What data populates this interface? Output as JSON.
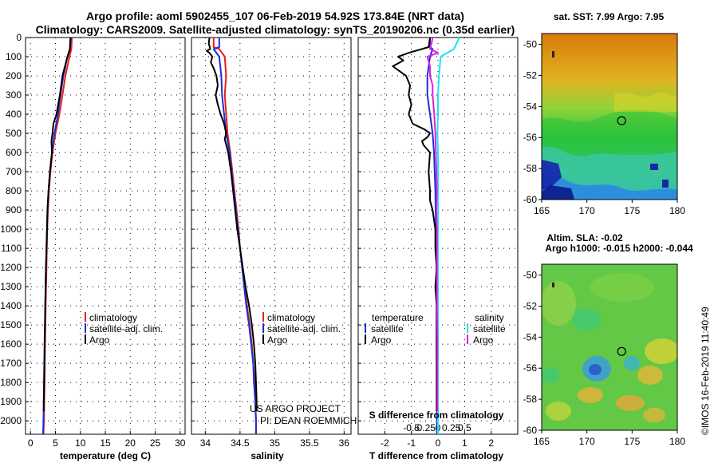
{
  "header": {
    "line1": "Argo profile: aoml 5902455_107 06-Feb-2019 54.92S 173.84E (NRT data)",
    "line2": "Climatology: CARS2009. Satellite-adjusted climatology: synTS_20190206.nc (0.35d earlier)"
  },
  "colors": {
    "climatology": "#e8201a",
    "satellite": "#1a2fd6",
    "argo": "#000000",
    "sal_sat": "#19e6f0",
    "sal_argo": "#e61ae6"
  },
  "chart_data": [
    {
      "type": "line",
      "panel": "temperature",
      "xlabel": "temperature (deg C)",
      "xlim": [
        -1,
        31
      ],
      "xticks": [
        "0",
        "5",
        "10",
        "15",
        "20",
        "25",
        "30"
      ],
      "ylim": [
        0,
        2070
      ],
      "yticks": [
        "0",
        "100",
        "200",
        "300",
        "400",
        "500",
        "600",
        "700",
        "800",
        "900",
        "1000",
        "1100",
        "1200",
        "1300",
        "1400",
        "1500",
        "1600",
        "1700",
        "1800",
        "1900",
        "2000"
      ],
      "legend": [
        "climatology",
        "satellite-adj. clim.",
        "Argo"
      ],
      "series": [
        {
          "name": "climatology",
          "depth": [
            0,
            60,
            100,
            200,
            300,
            400,
            500,
            600,
            700,
            800,
            900,
            1000,
            1200,
            1400,
            1600,
            1800,
            2000,
            2070
          ],
          "values": [
            8.3,
            8.2,
            7.8,
            7.0,
            6.4,
            5.8,
            5.0,
            4.4,
            4.0,
            3.7,
            3.5,
            3.35,
            3.2,
            3.05,
            2.9,
            2.8,
            2.7,
            2.6
          ]
        },
        {
          "name": "satellite-adj. clim.",
          "depth": [
            0,
            60,
            100,
            200,
            300,
            400,
            500,
            600,
            700,
            800,
            900,
            1000,
            1200,
            1400,
            1600,
            1800,
            2000,
            2070
          ],
          "values": [
            8.1,
            7.9,
            7.4,
            6.6,
            6.0,
            5.5,
            4.8,
            4.3,
            3.9,
            3.6,
            3.4,
            3.3,
            3.1,
            2.95,
            2.8,
            2.7,
            2.6,
            2.5
          ]
        },
        {
          "name": "Argo",
          "depth": [
            0,
            60,
            110,
            200,
            300,
            400,
            450,
            500,
            540,
            600,
            700,
            800,
            900,
            1000,
            1200,
            1400,
            1600,
            1800,
            1950
          ],
          "values": [
            8.0,
            7.9,
            7.3,
            6.4,
            5.9,
            5.2,
            4.6,
            4.4,
            4.2,
            4.3,
            3.9,
            3.6,
            3.4,
            3.3,
            3.1,
            2.95,
            2.85,
            2.75,
            2.65
          ]
        }
      ]
    },
    {
      "type": "line",
      "panel": "salinity",
      "xlabel": "salinity",
      "xlim": [
        33.8,
        36.1
      ],
      "xticks": [
        "34",
        "34.5",
        "35",
        "35.5",
        "36"
      ],
      "ylim": [
        0,
        2070
      ],
      "legend": [
        "climatology",
        "satellite-adj. clim.",
        "Argo"
      ],
      "annotation": [
        "US ARGO PROJECT",
        "PI: DEAN ROEMMICH"
      ],
      "series": [
        {
          "name": "climatology",
          "depth": [
            0,
            50,
            60,
            100,
            200,
            300,
            400,
            500,
            600,
            700,
            800,
            900,
            1000,
            1100,
            1200,
            1300,
            1400,
            1500,
            1600,
            1700,
            1800,
            1900,
            2000,
            2070
          ],
          "values": [
            34.12,
            34.12,
            34.2,
            34.28,
            34.3,
            34.28,
            34.3,
            34.32,
            34.36,
            34.39,
            34.42,
            34.45,
            34.48,
            34.5,
            34.53,
            34.56,
            34.6,
            34.64,
            34.67,
            34.69,
            34.71,
            34.72,
            34.73,
            34.73
          ]
        },
        {
          "name": "satellite-adj. clim.",
          "depth": [
            0,
            50,
            60,
            100,
            200,
            300,
            400,
            500,
            600,
            700,
            800,
            900,
            1000,
            1100,
            1200,
            1300,
            1400,
            1500,
            1600,
            1700,
            1800,
            1900,
            2000,
            2070
          ],
          "values": [
            34.2,
            34.2,
            34.12,
            34.2,
            34.23,
            34.24,
            34.27,
            34.3,
            34.35,
            34.38,
            34.41,
            34.44,
            34.47,
            34.5,
            34.53,
            34.56,
            34.59,
            34.63,
            34.66,
            34.69,
            34.7,
            34.72,
            34.73,
            34.73
          ]
        },
        {
          "name": "Argo",
          "depth": [
            0,
            30,
            60,
            70,
            80,
            100,
            130,
            160,
            200,
            250,
            300,
            350,
            400,
            450,
            500,
            530,
            600,
            650,
            700,
            800,
            900,
            1000,
            1100,
            1200,
            1300,
            1400,
            1500,
            1600,
            1700,
            1800,
            1900,
            1950
          ],
          "values": [
            34.06,
            34.05,
            34.07,
            34.02,
            34.06,
            34.1,
            34.08,
            34.12,
            34.16,
            34.18,
            34.15,
            34.18,
            34.22,
            34.27,
            34.3,
            34.28,
            34.33,
            34.35,
            34.37,
            34.4,
            34.43,
            34.46,
            34.5,
            34.54,
            34.58,
            34.63,
            34.67,
            34.7,
            34.72,
            34.73,
            34.74,
            34.74
          ]
        }
      ]
    },
    {
      "type": "line",
      "panel": "differences",
      "xlabel": "T difference from climatology",
      "xlim": [
        -3,
        3
      ],
      "xticks": [
        "-2",
        "-1",
        "0",
        "1",
        "2"
      ],
      "top_label": "S difference from climatology",
      "top_ticks": [
        "-0.5",
        "-0.25",
        "0",
        "0.25",
        "0.5"
      ],
      "ylim": [
        0,
        2070
      ],
      "legend_temperature_title": "temperature",
      "legend_salinity_title": "salinity",
      "legend_entries": [
        "satellite",
        "Argo"
      ],
      "series": [
        {
          "name": "T satellite",
          "depth": [
            0,
            50,
            60,
            100,
            200,
            300,
            400,
            500,
            600,
            800,
            1000,
            1200,
            1400,
            1600,
            1800,
            2000,
            2070
          ],
          "values": [
            -0.3,
            -0.3,
            -0.2,
            -0.3,
            -0.4,
            -0.4,
            -0.3,
            -0.2,
            -0.15,
            -0.1,
            -0.08,
            -0.06,
            -0.05,
            -0.05,
            -0.04,
            -0.04,
            -0.04
          ]
        },
        {
          "name": "T Argo",
          "depth": [
            0,
            50,
            80,
            100,
            120,
            150,
            180,
            200,
            250,
            300,
            350,
            400,
            450,
            480,
            500,
            520,
            540,
            560,
            600,
            700,
            800,
            850,
            900,
            1000,
            1100,
            1200,
            1300,
            1400,
            1500,
            1600,
            1700,
            1800,
            1900,
            1950
          ],
          "values": [
            -0.3,
            -0.35,
            -1.1,
            -1.5,
            -1.3,
            -1.7,
            -1.4,
            -1.2,
            -1.05,
            -1.1,
            -1.0,
            -1.1,
            -0.95,
            -0.5,
            -0.3,
            -0.4,
            -0.6,
            -0.55,
            -0.3,
            -0.35,
            -0.3,
            -0.3,
            -0.2,
            -0.1,
            -0.1,
            -0.05,
            -0.1,
            -0.05,
            -0.05,
            -0.05,
            -0.05,
            -0.05,
            -0.05,
            -0.05
          ]
        },
        {
          "name": "S satellite",
          "depth": [
            0,
            60,
            100,
            200,
            300,
            400,
            500,
            600,
            800,
            1000,
            1200,
            1400,
            1600,
            1800,
            2000,
            2070
          ],
          "values": [
            0.4,
            0.3,
            0.05,
            0.02,
            0.0,
            0.0,
            -0.01,
            0.0,
            0.0,
            0.0,
            0.0,
            0.0,
            0.0,
            0.0,
            0.0,
            0.0
          ]
        },
        {
          "name": "S Argo",
          "depth": [
            0,
            30,
            60,
            80,
            100,
            150,
            200,
            250,
            300,
            400,
            500,
            600,
            700,
            800,
            900,
            1000,
            1200,
            1400,
            1600,
            1800,
            1950
          ],
          "values": [
            -0.1,
            -0.12,
            -0.15,
            0.0,
            -0.2,
            -0.15,
            -0.15,
            -0.1,
            -0.1,
            -0.07,
            -0.05,
            -0.04,
            -0.03,
            -0.02,
            -0.03,
            -0.02,
            -0.02,
            -0.02,
            -0.01,
            -0.01,
            -0.01
          ]
        }
      ]
    },
    {
      "type": "heatmap",
      "panel": "sst_map",
      "title": "sat. SST: 7.99 Argo: 7.95",
      "xticks": [
        "165",
        "170",
        "175",
        "180"
      ],
      "yticks": [
        "-50",
        "-52",
        "-54",
        "-56",
        "-58",
        "-60"
      ],
      "xlim": [
        165,
        180
      ],
      "ylim": [
        -60,
        -49.3
      ],
      "profile_location": {
        "lon": 173.84,
        "lat": -54.92
      }
    },
    {
      "type": "heatmap",
      "panel": "sla_map",
      "title": "Altim. SLA: -0.02",
      "subtitle": "Argo h1000: -0.015 h2000: -0.044",
      "xticks": [
        "165",
        "170",
        "175",
        "180"
      ],
      "yticks": [
        "-50",
        "-52",
        "-54",
        "-56",
        "-58",
        "-60"
      ],
      "xlim": [
        165,
        180
      ],
      "ylim": [
        -60,
        -49.3
      ],
      "profile_location": {
        "lon": 173.84,
        "lat": -54.92
      }
    }
  ],
  "footer": {
    "credit": "©IMOS 16-Feb-2019 11:40:49"
  }
}
